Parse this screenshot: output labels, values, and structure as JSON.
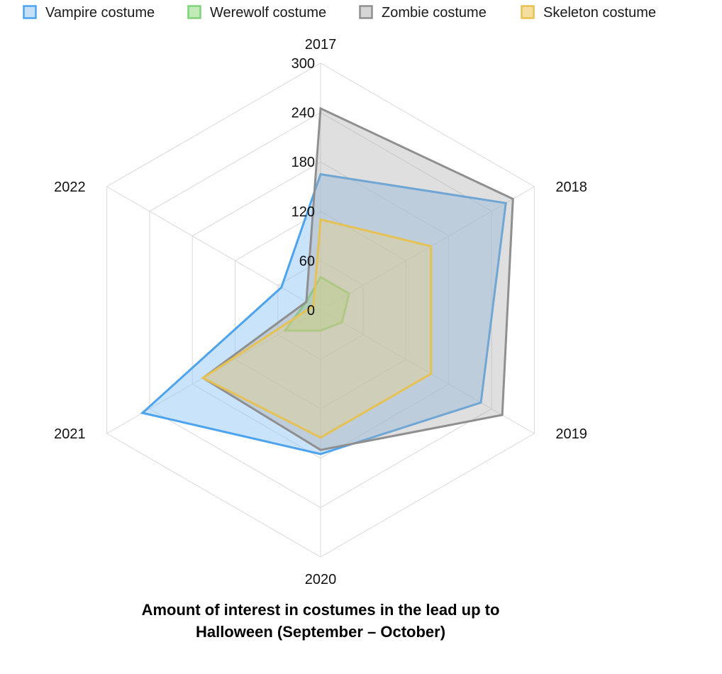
{
  "chart_data": {
    "type": "radar",
    "title_lines": [
      "Amount of interest in costumes in the lead up to",
      "Halloween (September – October)"
    ],
    "categories": [
      "2017",
      "2018",
      "2019",
      "2020",
      "2021",
      "2022"
    ],
    "rlim": [
      0,
      300
    ],
    "ticks": [
      "0",
      "60",
      "120",
      "180",
      "240",
      "300"
    ],
    "grid": true,
    "legend_position": "top",
    "series": [
      {
        "name": "Vampire costume",
        "values": [
          165,
          260,
          225,
          175,
          250,
          55
        ],
        "stroke": "#4da3ee",
        "fill": "rgba(146,200,245,0.5)",
        "legend_fill": "#c6e0f8"
      },
      {
        "name": "Werewolf costume",
        "values": [
          40,
          40,
          30,
          25,
          50,
          20
        ],
        "stroke": "#7ed37a",
        "fill": "rgba(160,224,150,0.55)",
        "legend_fill": "#c2eab8"
      },
      {
        "name": "Zombie costume",
        "values": [
          245,
          270,
          255,
          170,
          165,
          20
        ],
        "stroke": "#8f8f8f",
        "fill": "rgba(170,170,170,0.38)",
        "legend_fill": "#d6d6d6"
      },
      {
        "name": "Skeleton costume",
        "values": [
          110,
          155,
          155,
          155,
          165,
          10
        ],
        "stroke": "#e6c154",
        "fill": "rgba(238,210,120,0.35)",
        "legend_fill": "#f6df9e"
      }
    ]
  }
}
